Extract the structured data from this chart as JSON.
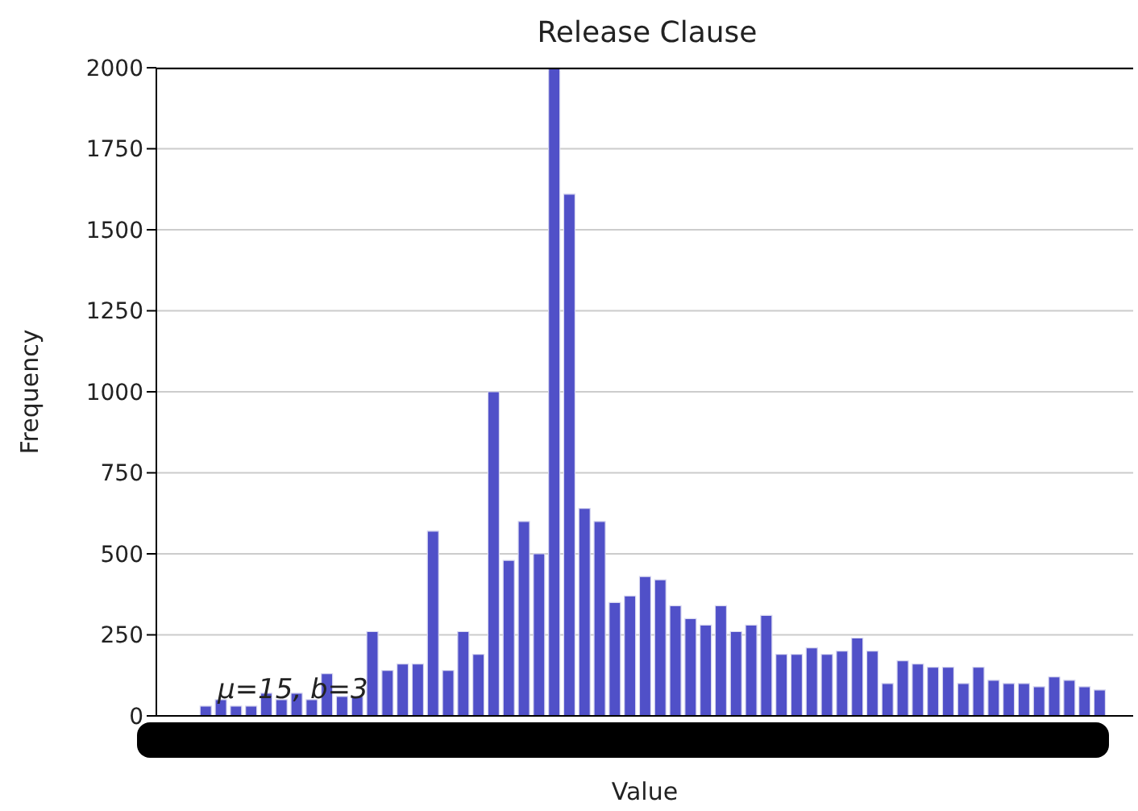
{
  "chart_data": {
    "type": "bar",
    "title": "Release Clause",
    "xlabel": "Value",
    "ylabel": "Frequency",
    "categories": [
      null,
      null,
      null,
      null,
      null,
      null,
      null,
      null,
      null,
      null,
      null,
      null,
      null,
      null,
      null,
      null,
      null,
      null,
      null,
      null,
      null,
      null,
      null,
      null,
      null,
      null,
      null,
      null,
      null,
      null,
      null,
      null,
      null,
      null,
      null,
      null,
      null,
      null,
      null,
      null,
      null,
      null,
      null,
      null,
      null,
      null,
      null,
      null,
      null,
      null,
      null,
      null,
      null,
      null,
      null,
      null,
      null,
      null,
      null,
      null
    ],
    "values": [
      30,
      50,
      30,
      30,
      70,
      50,
      70,
      50,
      130,
      60,
      60,
      260,
      140,
      160,
      160,
      570,
      140,
      260,
      190,
      1000,
      480,
      600,
      500,
      2000,
      1610,
      640,
      600,
      350,
      370,
      430,
      420,
      340,
      300,
      280,
      340,
      260,
      280,
      310,
      190,
      190,
      210,
      190,
      200,
      240,
      200,
      100,
      170,
      160,
      150,
      150,
      100,
      150,
      110,
      100,
      100,
      90,
      120,
      110,
      90,
      80
    ],
    "color": "#5050c8",
    "ylim": [
      0,
      2000
    ],
    "yticks": [
      0,
      250,
      500,
      750,
      1000,
      1250,
      1500,
      1750,
      2000
    ],
    "grid": "y",
    "annotations": [
      "μ=15, b=3"
    ]
  }
}
